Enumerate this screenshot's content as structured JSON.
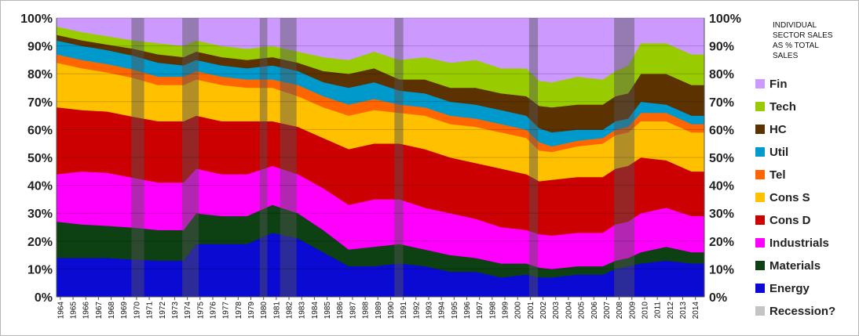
{
  "chart_data": {
    "type": "area",
    "stacked": true,
    "title": "Individual sector sales as % total sales",
    "xlabel": "",
    "ylabel": "",
    "ylim": [
      0,
      100
    ],
    "y_ticks": [
      "0%",
      "10%",
      "20%",
      "30%",
      "40%",
      "50%",
      "60%",
      "70%",
      "80%",
      "90%",
      "100%"
    ],
    "x_ticks": [
      "1964",
      "1965",
      "1966",
      "1967",
      "1968",
      "1969",
      "1970",
      "1971",
      "1972",
      "1973",
      "1974",
      "1975",
      "1976",
      "1977",
      "1978",
      "1979",
      "1980",
      "1981",
      "1982",
      "1983",
      "1984",
      "1985",
      "1986",
      "1987",
      "1988",
      "1989",
      "1990",
      "1991",
      "1992",
      "1993",
      "1994",
      "1995",
      "1996",
      "1997",
      "1998",
      "1999",
      "2000",
      "2001",
      "2002",
      "2003",
      "2004",
      "2005",
      "2006",
      "2007",
      "2008",
      "2009",
      "2010",
      "2011",
      "2012",
      "2013",
      "2014"
    ],
    "legend_title": [
      "INDIVIDUAL",
      "SECTOR SALES",
      "AS % TOTAL",
      "SALES"
    ],
    "legend_position": "right",
    "x": [
      1964,
      1966,
      1968,
      1970,
      1972,
      1974,
      1975,
      1977,
      1979,
      1981,
      1983,
      1985,
      1987,
      1989,
      1991,
      1993,
      1995,
      1997,
      1999,
      2001,
      2002,
      2003,
      2005,
      2007,
      2008,
      2009,
      2010,
      2012,
      2014,
      2015
    ],
    "series": [
      {
        "name": "Energy",
        "color": "#0a0ad2",
        "values": [
          14,
          14,
          14,
          13.5,
          13,
          13,
          19,
          19,
          19,
          23,
          21,
          16,
          11,
          11,
          12,
          11,
          9,
          9,
          7,
          8,
          7,
          7,
          8,
          8,
          10,
          11,
          12,
          13,
          12,
          12
        ]
      },
      {
        "name": "Materials",
        "color": "#0d4012",
        "values": [
          13,
          12,
          11.5,
          11.5,
          11,
          11,
          11,
          10,
          10,
          10,
          9,
          8,
          6,
          7,
          7,
          6,
          6,
          5,
          5,
          4,
          3.5,
          3,
          3,
          3,
          3,
          3,
          4,
          5,
          4,
          4
        ]
      },
      {
        "name": "Industrials",
        "color": "#ff00ff",
        "values": [
          17,
          19,
          19,
          18,
          17,
          17,
          16,
          15,
          15,
          14,
          14,
          15,
          16,
          17,
          16,
          15,
          15,
          14,
          13,
          12,
          12,
          12,
          12,
          12,
          13,
          13,
          14,
          14,
          13,
          13
        ]
      },
      {
        "name": "Cons D",
        "color": "#cc0000",
        "values": [
          24,
          22,
          22,
          22,
          22,
          22,
          19,
          19,
          19,
          16,
          17,
          18,
          20,
          20,
          20,
          21,
          20,
          20,
          21,
          20,
          19,
          20,
          20,
          20,
          20,
          20,
          20,
          17,
          16,
          16
        ]
      },
      {
        "name": "Cons S",
        "color": "#ffc000",
        "values": [
          16,
          15,
          14,
          14,
          13,
          13,
          13,
          13,
          12,
          12,
          11,
          11,
          12,
          12,
          11,
          12,
          12,
          13,
          13,
          13,
          11,
          10,
          11,
          12,
          12,
          12,
          13,
          14,
          14,
          14
        ]
      },
      {
        "name": "Tel",
        "color": "#ff6600",
        "values": [
          3,
          3,
          3,
          3,
          3,
          3,
          3,
          3,
          3,
          3,
          4,
          4,
          4,
          4,
          3,
          3,
          3,
          3,
          3,
          3,
          3,
          2,
          2,
          2,
          2,
          2,
          3,
          3,
          3,
          3
        ]
      },
      {
        "name": "Util",
        "color": "#0099cc",
        "values": [
          5,
          5,
          5,
          5,
          5,
          4,
          4,
          4,
          4,
          5,
          5,
          5,
          6,
          6,
          5,
          5,
          5,
          5,
          5,
          5,
          5,
          5,
          4,
          3,
          3,
          3,
          4,
          3,
          3,
          3
        ]
      },
      {
        "name": "HC",
        "color": "#5c3200",
        "values": [
          2,
          2,
          2,
          2.5,
          3,
          3,
          3,
          3,
          3,
          3,
          3,
          4,
          5,
          5,
          4,
          5,
          5,
          6,
          6,
          7,
          8,
          9,
          9,
          9,
          9,
          9,
          10,
          11,
          11,
          11
        ]
      },
      {
        "name": "Tech",
        "color": "#99cc00",
        "values": [
          3,
          3,
          3,
          3,
          4,
          4,
          4,
          4,
          4,
          4,
          4,
          5,
          5,
          6,
          7,
          8,
          9,
          10,
          9,
          10,
          9,
          9,
          10,
          9,
          9,
          10,
          11,
          11,
          11,
          11
        ]
      },
      {
        "name": "Fin",
        "color": "#cc99ff",
        "values": [
          3,
          5,
          6.5,
          8,
          9,
          10,
          8,
          10,
          11,
          10,
          12,
          14,
          15,
          12,
          15,
          14,
          16,
          15,
          18,
          18,
          22.5,
          23,
          21,
          22,
          19,
          17,
          9,
          9,
          13,
          13
        ]
      }
    ],
    "recession_label": "Recession?",
    "recession_color": "#555555",
    "recessions": [
      [
        1969.9,
        1970.9
      ],
      [
        1973.9,
        1975.2
      ],
      [
        1980.0,
        1980.6
      ],
      [
        1981.6,
        1982.9
      ],
      [
        1990.6,
        1991.3
      ],
      [
        2001.2,
        2001.9
      ],
      [
        2007.9,
        2009.5
      ]
    ]
  }
}
